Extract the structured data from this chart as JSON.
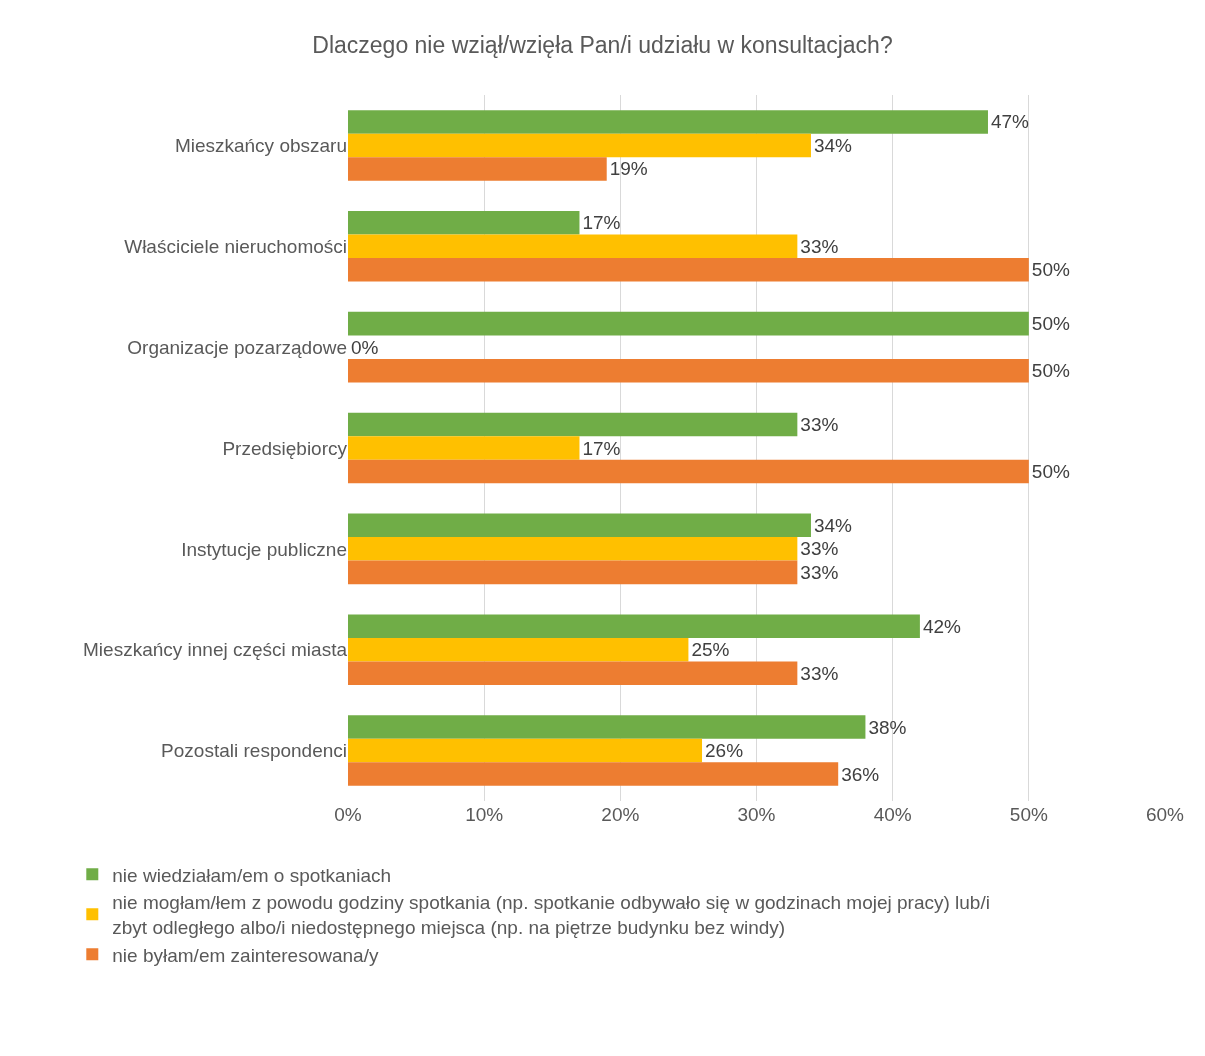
{
  "chart_data": {
    "type": "bar",
    "orientation": "horizontal",
    "title": "Dlaczego nie wziął/wzięła Pan/i udziału w konsultacjach?",
    "categories": [
      "Mieszkańcy obszaru",
      "Właściciele nieruchomości",
      "Organizacje pozarządowe",
      "Przedsiębiorcy",
      "Instytucje publiczne",
      "Mieszkańcy innej części miasta",
      "Pozostali respondenci"
    ],
    "series": [
      {
        "name": "nie wiedziałam/em o spotkaniach",
        "color": "#70ad47",
        "values": [
          47,
          17,
          50,
          33,
          34,
          42,
          38
        ],
        "value_labels": [
          "47%",
          "17%",
          "50%",
          "33%",
          "34%",
          "42%",
          "38%"
        ]
      },
      {
        "name": "nie mogłam/łem z powodu godziny spotkania (np. spotkanie odbywało się w godzinach mojej pracy) lub/i zbyt odległego albo/i niedostępnego miejsca (np. na piętrze budynku bez windy)",
        "color": "#ffc000",
        "values": [
          34,
          33,
          0,
          17,
          33,
          25,
          26
        ],
        "value_labels": [
          "34%",
          "33%",
          "0%",
          "17%",
          "33%",
          "25%",
          "26%"
        ]
      },
      {
        "name": "nie byłam/em zainteresowana/y",
        "color": "#ed7d31",
        "values": [
          19,
          50,
          50,
          50,
          33,
          33,
          36
        ],
        "value_labels": [
          "19%",
          "50%",
          "50%",
          "50%",
          "33%",
          "33%",
          "36%"
        ]
      }
    ],
    "xlim": [
      0,
      60
    ],
    "xticks": [
      {
        "value": 0,
        "label": "0%"
      },
      {
        "value": 10,
        "label": "10%"
      },
      {
        "value": 20,
        "label": "20%"
      },
      {
        "value": 30,
        "label": "30%"
      },
      {
        "value": 40,
        "label": "40%"
      },
      {
        "value": 50,
        "label": "50%"
      },
      {
        "value": 60,
        "label": "60%"
      }
    ],
    "grid": "x",
    "legend": "bottom"
  }
}
